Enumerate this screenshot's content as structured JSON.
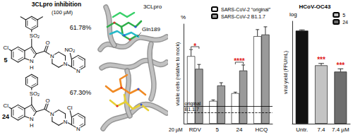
{
  "figure": {
    "inhibition_panel": {
      "title": "3CLpro inhibition",
      "subtitle": "(100 µM)",
      "compounds": [
        {
          "label": "5",
          "inhibition": "61.78%",
          "atoms": [
            "Cl",
            "SO2",
            "N",
            "H",
            "O",
            "N",
            "N",
            "N",
            "NO2"
          ]
        },
        {
          "label": "24",
          "inhibition": "67.30%",
          "atoms": [
            "Cl",
            "SO2",
            "N",
            "H",
            "O",
            "N",
            "N",
            "N",
            "Cl"
          ]
        }
      ]
    },
    "docking_panel": {
      "protein": "3CLpro",
      "residue": "Gln189"
    }
  },
  "chart_data": [
    {
      "type": "bar",
      "y_label": "viable cells (relative to mock)",
      "y_unit": "%",
      "x_label": "20 µM",
      "categories": [
        "RDV",
        "5",
        "24",
        "HCQ"
      ],
      "series": [
        {
          "name": "SARS-CoV-2 “original”",
          "color": "#ffffff",
          "values": [
            122,
            41,
            55,
            158
          ],
          "errors": [
            12,
            2,
            2,
            12
          ]
        },
        {
          "name": "SARS-CoV-2 B1.1.7",
          "color": "#9a9a9a",
          "values": [
            99,
            69,
            96,
            161
          ],
          "errors": [
            8,
            5,
            10,
            14
          ]
        }
      ],
      "ylim": [
        0,
        180
      ],
      "yticks": [],
      "tick_labels": "x",
      "grid": false,
      "legend": "top-right",
      "reference_lines": [
        {
          "label": "original",
          "value": 31,
          "line_style": "solid"
        },
        {
          "label": "B1.1.7",
          "value": 20,
          "line_style": "dashed"
        }
      ],
      "annotations": [
        {
          "category": "RDV",
          "text": "*"
        },
        {
          "category": "24",
          "text": "****"
        }
      ]
    },
    {
      "type": "bar",
      "title": "HCoV-OC43",
      "y_label": "viral yield (FFU/mL)",
      "y_unit": "log",
      "categories": [
        "Untr.",
        "7.4",
        "7.4 µM"
      ],
      "series": [
        {
          "color": "#111111",
          "values": [
            5.9,
            null,
            null
          ],
          "errors": [
            0.05,
            null,
            null
          ]
        },
        {
          "name": "5",
          "color": "#c4c4c4",
          "values": [
            null,
            3.7,
            null
          ],
          "errors": [
            null,
            0.12,
            null
          ]
        },
        {
          "name": "24",
          "color": "#6e6e6e",
          "values": [
            null,
            null,
            3.3
          ],
          "errors": [
            null,
            null,
            0.18
          ]
        }
      ],
      "ylim": [
        0,
        6.5
      ],
      "yticks": [],
      "tick_labels": "x",
      "grid": false,
      "legend": "top-right",
      "annotations": [
        {
          "category": "7.4",
          "text": "***"
        },
        {
          "category": "7.4 µM",
          "text": "***"
        }
      ]
    }
  ]
}
